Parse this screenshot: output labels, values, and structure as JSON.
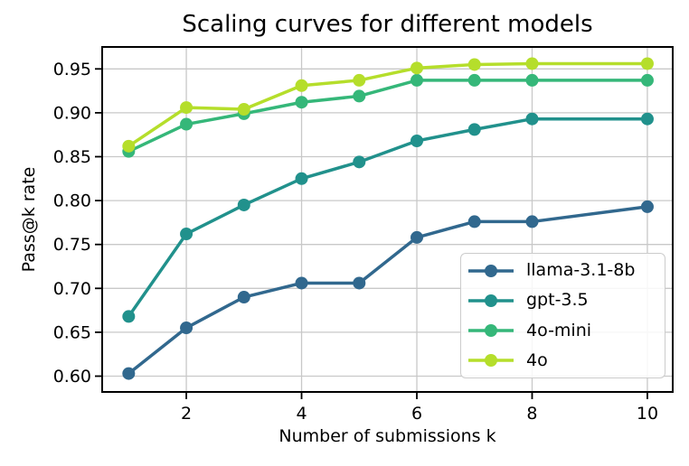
{
  "chart_data": {
    "type": "line",
    "title": "Scaling curves for different models",
    "xlabel": "Number of submissions k",
    "ylabel": "Pass@k rate",
    "x": [
      1,
      2,
      3,
      4,
      5,
      6,
      7,
      8,
      10
    ],
    "series": [
      {
        "name": "llama-3.1-8b",
        "color": "#31688e",
        "values": [
          0.603,
          0.655,
          0.69,
          0.706,
          0.706,
          0.758,
          0.776,
          0.776,
          0.793
        ]
      },
      {
        "name": "gpt-3.5",
        "color": "#21918c",
        "values": [
          0.668,
          0.762,
          0.795,
          0.825,
          0.844,
          0.868,
          0.881,
          0.893,
          0.893
        ]
      },
      {
        "name": "4o-mini",
        "color": "#35b779",
        "values": [
          0.856,
          0.887,
          0.899,
          0.912,
          0.919,
          0.937,
          0.937,
          0.937,
          0.937
        ]
      },
      {
        "name": "4o",
        "color": "#b5de2b",
        "values": [
          0.862,
          0.906,
          0.904,
          0.931,
          0.937,
          0.951,
          0.955,
          0.956,
          0.956
        ]
      }
    ],
    "xlim": [
      0.54,
      10.44
    ],
    "ylim": [
      0.582,
      0.975
    ],
    "x_ticks": [
      2,
      4,
      6,
      8,
      10
    ],
    "y_ticks": [
      0.6,
      0.65,
      0.7,
      0.75,
      0.8,
      0.85,
      0.9,
      0.95
    ],
    "y_tick_labels": [
      "0.60",
      "0.65",
      "0.70",
      "0.75",
      "0.80",
      "0.85",
      "0.90",
      "0.95"
    ],
    "grid": true,
    "legend_position": "lower right",
    "marker": "o",
    "colors": {
      "grid": "#c8c8c8",
      "spine": "#000000",
      "background": "#ffffff"
    }
  }
}
